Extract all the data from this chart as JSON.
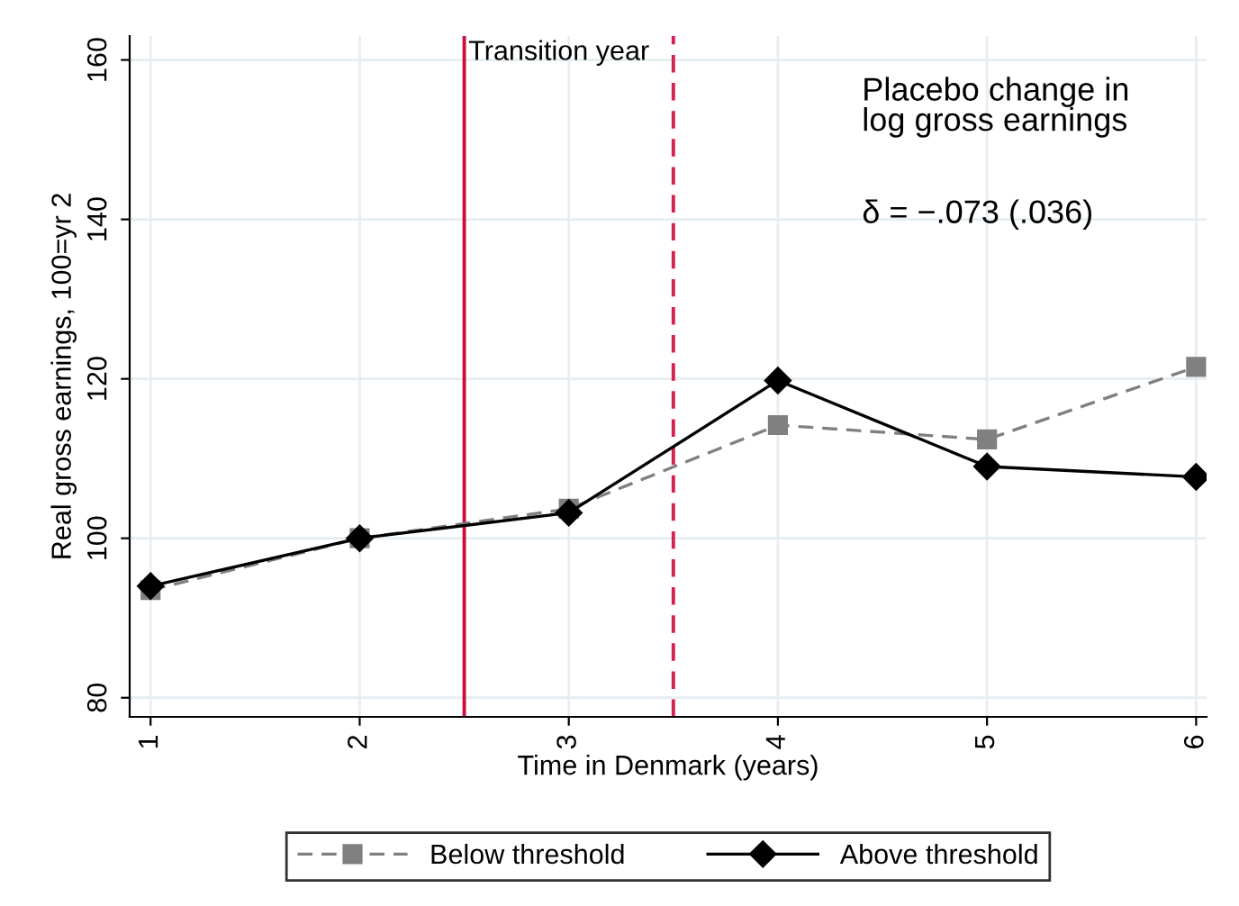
{
  "chart_data": {
    "type": "line",
    "xlabel": "Time in Denmark (years)",
    "ylabel": "Real gross earnings, 100=yr 2",
    "x": [
      1,
      2,
      3,
      4,
      5,
      6
    ],
    "xlim": [
      0.9,
      6.05
    ],
    "xticks": [
      1,
      2,
      3,
      4,
      5,
      6
    ],
    "ylim": [
      77.6,
      163
    ],
    "yticks": [
      80,
      100,
      120,
      140,
      160
    ],
    "series": [
      {
        "name": "Below threshold",
        "color": "#808080",
        "values": [
          93.5,
          100,
          103.7,
          114.2,
          112.4,
          121.5
        ],
        "marker": "square",
        "line_style": "dashed"
      },
      {
        "name": "Above threshold",
        "color": "#000000",
        "values": [
          94.0,
          100,
          103.2,
          119.8,
          109.0,
          107.7
        ],
        "marker": "diamond",
        "line_style": "solid"
      }
    ],
    "ref_lines": [
      {
        "axis": "x",
        "value": 2.5,
        "label": "Transition year",
        "color": "#c8103c",
        "line_style": "solid"
      },
      {
        "axis": "x",
        "value": 3.5,
        "label": null,
        "color": "#d6204e",
        "line_style": "dashed"
      }
    ],
    "annotations": [
      "Placebo change in\nlog gross earnings",
      "δ = −.073 (.036)"
    ],
    "grid": true,
    "legend": "bottom"
  }
}
